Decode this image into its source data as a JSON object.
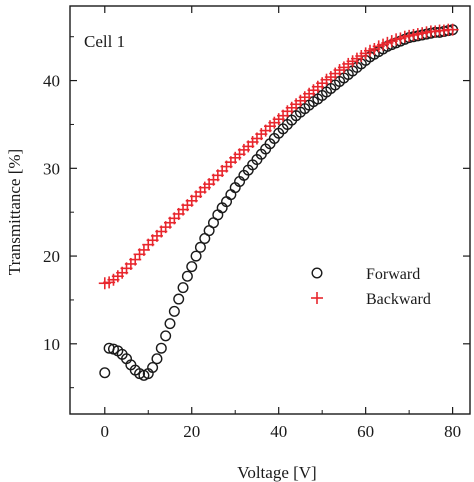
{
  "chart_data": {
    "type": "scatter",
    "annotation": "Cell 1",
    "xlabel": "Voltage  [V]",
    "ylabel": "Transmittance  [%]",
    "xlim": [
      -8,
      84
    ],
    "ylim": [
      2,
      48.5
    ],
    "xticks": [
      0,
      20,
      40,
      60,
      80
    ],
    "yticks": [
      10,
      20,
      30,
      40
    ],
    "grid": false,
    "legend_position": "middle-right",
    "series": [
      {
        "name": "Forward",
        "marker": "circle",
        "color": "#1a1a1a",
        "x": [
          0,
          1,
          2,
          3,
          4,
          5,
          6,
          7,
          8,
          9,
          10,
          11,
          12,
          13,
          14,
          15,
          16,
          17,
          18,
          19,
          20,
          21,
          22,
          23,
          24,
          25,
          26,
          27,
          28,
          29,
          30,
          31,
          32,
          33,
          34,
          35,
          36,
          37,
          38,
          39,
          40,
          41,
          42,
          43,
          44,
          45,
          46,
          47,
          48,
          49,
          50,
          51,
          52,
          53,
          54,
          55,
          56,
          57,
          58,
          59,
          60,
          61,
          62,
          63,
          64,
          65,
          66,
          67,
          68,
          69,
          70,
          71,
          72,
          73,
          74,
          75,
          76,
          77,
          78,
          79,
          80
        ],
        "y": [
          6.7,
          9.5,
          9.4,
          9.2,
          8.8,
          8.3,
          7.6,
          7.0,
          6.6,
          6.4,
          6.6,
          7.3,
          8.3,
          9.5,
          10.9,
          12.3,
          13.7,
          15.1,
          16.4,
          17.7,
          18.8,
          20.0,
          21.0,
          22.0,
          22.9,
          23.8,
          24.7,
          25.5,
          26.2,
          27.0,
          27.8,
          28.5,
          29.2,
          29.8,
          30.4,
          31.0,
          31.6,
          32.2,
          32.8,
          33.4,
          34.0,
          34.5,
          35.0,
          35.5,
          36.0,
          36.4,
          36.8,
          37.2,
          37.6,
          37.9,
          38.3,
          38.7,
          39.1,
          39.5,
          39.9,
          40.3,
          40.7,
          41.1,
          41.5,
          41.9,
          42.3,
          42.7,
          43.0,
          43.3,
          43.6,
          43.9,
          44.1,
          44.3,
          44.5,
          44.7,
          44.9,
          45.0,
          45.1,
          45.2,
          45.3,
          45.4,
          45.5,
          45.5,
          45.6,
          45.7,
          45.8
        ]
      },
      {
        "name": "Backward",
        "marker": "plus",
        "color": "#e8262d",
        "x": [
          0,
          1,
          2,
          3,
          4,
          5,
          6,
          7,
          8,
          9,
          10,
          11,
          12,
          13,
          14,
          15,
          16,
          17,
          18,
          19,
          20,
          21,
          22,
          23,
          24,
          25,
          26,
          27,
          28,
          29,
          30,
          31,
          32,
          33,
          34,
          35,
          36,
          37,
          38,
          39,
          40,
          41,
          42,
          43,
          44,
          45,
          46,
          47,
          48,
          49,
          50,
          51,
          52,
          53,
          54,
          55,
          56,
          57,
          58,
          59,
          60,
          61,
          62,
          63,
          64,
          65,
          66,
          67,
          68,
          69,
          70,
          71,
          72,
          73,
          74,
          75,
          76,
          77,
          78,
          79,
          80
        ],
        "y": [
          16.9,
          17.0,
          17.3,
          17.7,
          18.1,
          18.6,
          19.1,
          19.6,
          20.2,
          20.7,
          21.3,
          21.8,
          22.3,
          22.8,
          23.3,
          23.8,
          24.3,
          24.8,
          25.3,
          25.8,
          26.3,
          26.8,
          27.3,
          27.8,
          28.2,
          28.7,
          29.2,
          29.7,
          30.2,
          30.7,
          31.2,
          31.6,
          32.1,
          32.5,
          33.0,
          33.4,
          33.9,
          34.3,
          34.8,
          35.2,
          35.6,
          36.0,
          36.5,
          36.9,
          37.3,
          37.7,
          38.1,
          38.5,
          38.9,
          39.3,
          39.7,
          40.1,
          40.4,
          40.8,
          41.2,
          41.5,
          41.9,
          42.2,
          42.5,
          42.8,
          43.1,
          43.4,
          43.6,
          43.9,
          44.1,
          44.3,
          44.5,
          44.7,
          44.8,
          45.0,
          45.1,
          45.2,
          45.3,
          45.4,
          45.5,
          45.6,
          45.6,
          45.7,
          45.7,
          45.8,
          45.8
        ]
      }
    ]
  }
}
